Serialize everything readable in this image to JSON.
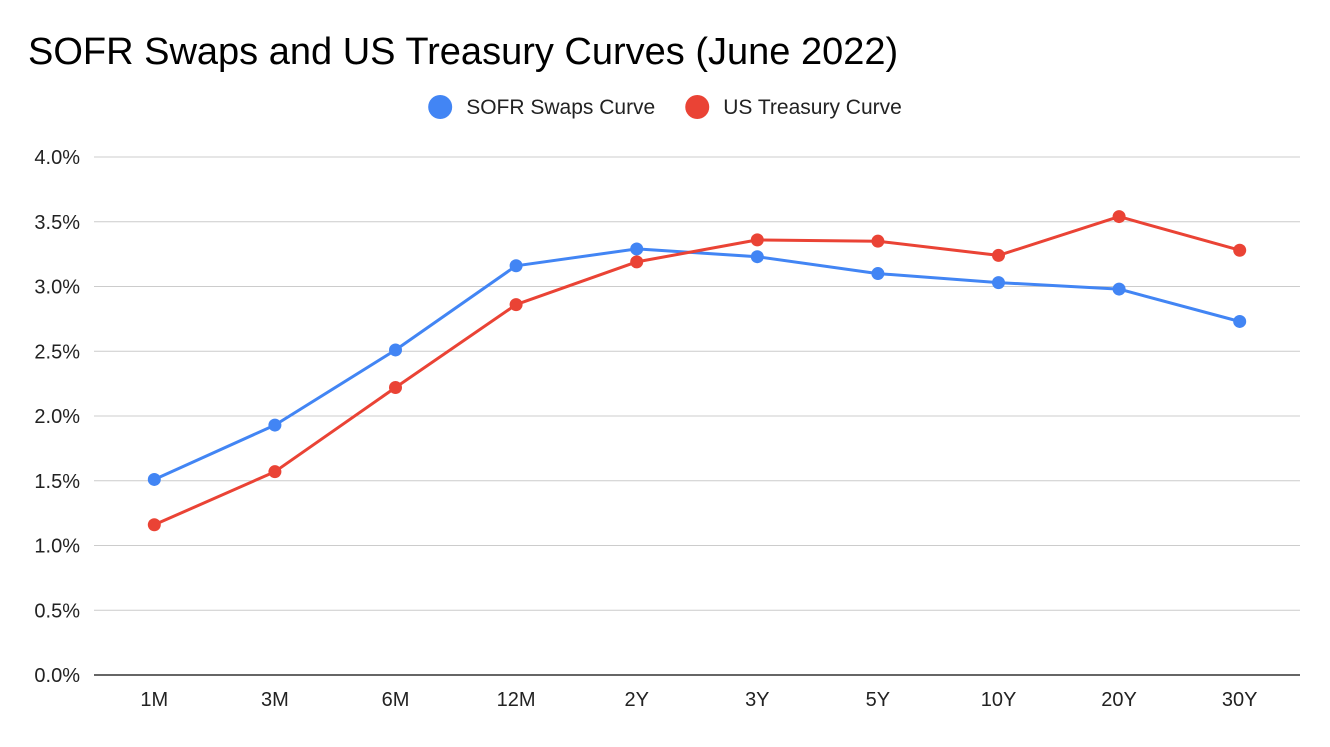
{
  "chart_data": {
    "type": "line",
    "title": "SOFR Swaps and US Treasury Curves (June 2022)",
    "xlabel": "",
    "ylabel": "",
    "categories": [
      "1M",
      "3M",
      "6M",
      "12M",
      "2Y",
      "3Y",
      "5Y",
      "10Y",
      "20Y",
      "30Y"
    ],
    "ylim": [
      0,
      4
    ],
    "yticks": [
      0,
      0.5,
      1.0,
      1.5,
      2.0,
      2.5,
      3.0,
      3.5,
      4.0
    ],
    "ytick_labels": [
      "0.0%",
      "0.5%",
      "1.0%",
      "1.5%",
      "2.0%",
      "2.5%",
      "3.0%",
      "3.5%",
      "4.0%"
    ],
    "grid": true,
    "legend_position": "top-center",
    "series": [
      {
        "name": "SOFR Swaps Curve",
        "color": "#4285f4",
        "values": [
          1.51,
          1.93,
          2.51,
          3.16,
          3.29,
          3.23,
          3.1,
          3.03,
          2.98,
          2.73
        ]
      },
      {
        "name": "US Treasury Curve",
        "color": "#ea4335",
        "values": [
          1.16,
          1.57,
          2.22,
          2.86,
          3.19,
          3.36,
          3.35,
          3.24,
          3.54,
          3.28
        ]
      }
    ]
  }
}
